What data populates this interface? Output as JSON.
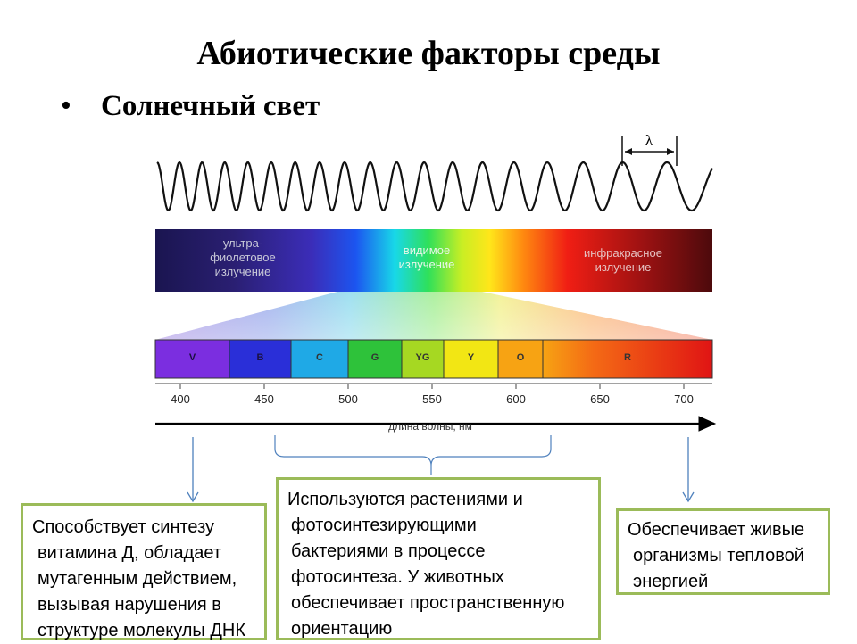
{
  "title": "Абиотические факторы среды",
  "bullet": "Солнечный свет",
  "wave_label": "λ",
  "spectrum_regions": {
    "uv": [
      "ультра-",
      "фиолетовое",
      "излучение"
    ],
    "visible": [
      "видимое",
      "излучение"
    ],
    "ir": [
      "инфракрасное",
      "излучение"
    ]
  },
  "color_bands": [
    "V",
    "B",
    "C",
    "G",
    "YG",
    "Y",
    "O",
    "R"
  ],
  "band_colors": [
    "#7b2ee0",
    "#2a2fd8",
    "#1fa9e6",
    "#2ec23a",
    "#a6d822",
    "#f2e614",
    "#f7a313",
    "#ef2f16"
  ],
  "axis": {
    "ticks": [
      "400",
      "450",
      "500",
      "550",
      "600",
      "650",
      "700"
    ],
    "label": "длина волны, нм"
  },
  "boxes": {
    "uv": [
      "Способствует синтезу",
      "витамина Д, обладает",
      "мутагенным действием,",
      "вызывая  нарушения в",
      "структуре молекулы ДНК"
    ],
    "visible": [
      "Используются растениями и",
      "фотосинтезирующими",
      "бактериями в процессе",
      "фотосинтеза. У животных",
      "обеспечивает пространственную",
      "ориентацию"
    ],
    "ir": [
      "Обеспечивает живые",
      "организмы тепловой",
      "энергией"
    ]
  },
  "accent_colors": {
    "box_border": "#9bbb59",
    "pointer": "#4f81bd"
  }
}
